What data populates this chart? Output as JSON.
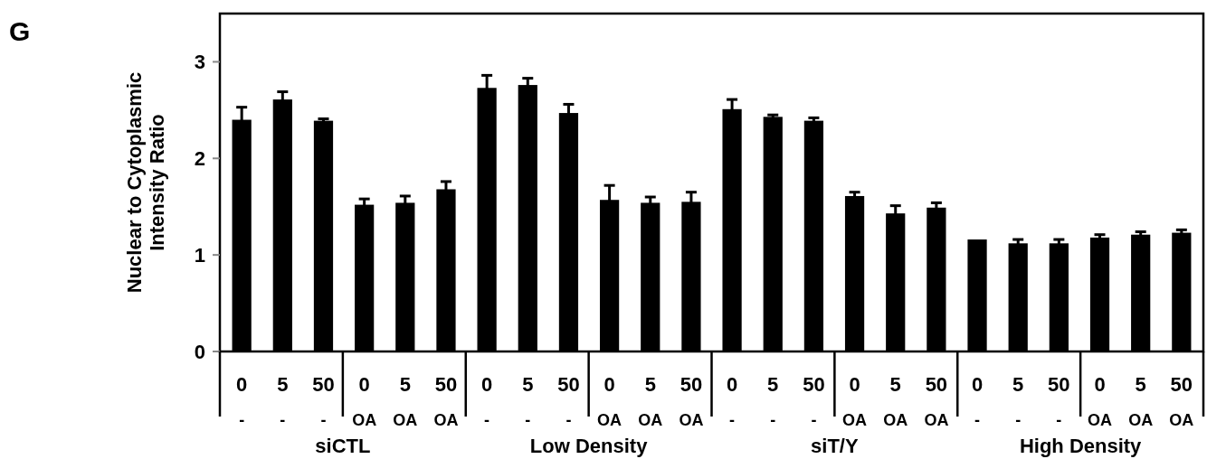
{
  "chart_data": {
    "type": "bar",
    "title": "G",
    "ylabel": "Nuclear to Cytoplasmic\nIntensity Ratio",
    "categories": [
      "0",
      "5",
      "50",
      "0",
      "5",
      "50",
      "0",
      "5",
      "50",
      "0",
      "5",
      "50",
      "0",
      "5",
      "50",
      "0",
      "5",
      "50",
      "0",
      "5",
      "50",
      "0",
      "5",
      "50"
    ],
    "values": [
      2.4,
      2.61,
      2.39,
      1.52,
      1.54,
      1.68,
      2.73,
      2.76,
      2.47,
      1.57,
      1.54,
      1.55,
      2.51,
      2.43,
      2.39,
      1.61,
      1.43,
      1.49,
      1.16,
      1.12,
      1.12,
      1.18,
      1.21,
      1.23
    ],
    "errors": [
      0.13,
      0.08,
      0.02,
      0.06,
      0.07,
      0.08,
      0.13,
      0.07,
      0.09,
      0.15,
      0.06,
      0.1,
      0.1,
      0.02,
      0.03,
      0.04,
      0.08,
      0.05,
      null,
      0.04,
      0.04,
      0.03,
      0.03,
      0.03
    ],
    "color": "#000000",
    "ylim": [
      0,
      3.5
    ],
    "yticks": [
      0,
      1,
      2,
      3
    ],
    "annotations": [
      "-",
      "-",
      "-",
      "OA",
      "OA",
      "OA",
      "-",
      "-",
      "-",
      "OA",
      "OA",
      "OA",
      "-",
      "-",
      "-",
      "OA",
      "OA",
      "OA",
      "-",
      "-",
      "-",
      "OA",
      "OA",
      "OA",
      "siCTL",
      "Low Density",
      "siT/Y",
      "High Density"
    ]
  }
}
